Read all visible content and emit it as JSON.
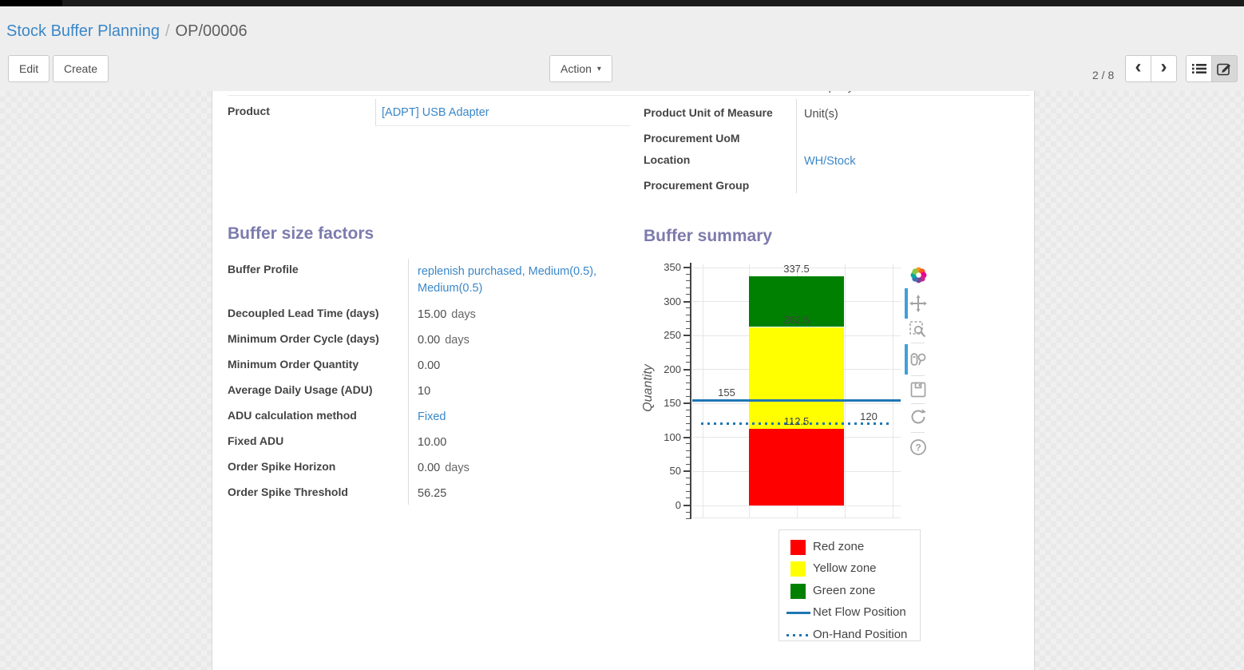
{
  "colors": {
    "heading": "#7c7bad",
    "link": "#3a87c8",
    "red_zone": "#ff0000",
    "yellow_zone": "#ffff00",
    "green_zone": "#008000",
    "line_blue": "#1f77b4",
    "modebar_active": "#3ea0dc"
  },
  "breadcrumb": {
    "parent": "Stock Buffer Planning",
    "separator": "/",
    "current": "OP/00006"
  },
  "toolbar": {
    "edit_label": "Edit",
    "create_label": "Create",
    "action_label": "Action",
    "pager": "2 / 8",
    "prev_icon": "chevron-left",
    "next_icon": "chevron-right",
    "view_icons": [
      "list-view-icon",
      "form-view-icon"
    ]
  },
  "form": {
    "clipped_top_value": "Company",
    "product": {
      "label": "Product",
      "value": "[ADPT] USB Adapter"
    },
    "right_fields": [
      {
        "label": "Product Unit of Measure",
        "value": "Unit(s)"
      },
      {
        "label": "Procurement UoM",
        "value": ""
      },
      {
        "label": "Location",
        "value": "WH/Stock"
      },
      {
        "label": "Procurement Group",
        "value": ""
      }
    ],
    "sections": {
      "factors_title": "Buffer size factors",
      "summary_title": "Buffer summary"
    },
    "factor_fields": [
      {
        "label": "Buffer Profile",
        "value": "replenish purchased, Medium(0.5), Medium(0.5)",
        "suffix": "",
        "link": true
      },
      {
        "label": "Decoupled Lead Time (days)",
        "value": "15.00",
        "suffix": "days",
        "link": false
      },
      {
        "label": "Minimum Order Cycle (days)",
        "value": "0.00",
        "suffix": "days",
        "link": false
      },
      {
        "label": "Minimum Order Quantity",
        "value": "0.00",
        "suffix": "",
        "link": false
      },
      {
        "label": "Average Daily Usage (ADU)",
        "value": "10",
        "suffix": "",
        "link": false
      },
      {
        "label": "ADU calculation method",
        "value": "Fixed",
        "suffix": "",
        "link": true
      },
      {
        "label": "Fixed ADU",
        "value": "10.00",
        "suffix": "",
        "link": false
      },
      {
        "label": "Order Spike Horizon",
        "value": "0.00",
        "suffix": "days",
        "link": false
      },
      {
        "label": "Order Spike Threshold",
        "value": "56.25",
        "suffix": "",
        "link": false
      }
    ]
  },
  "chart_data": {
    "type": "bar",
    "title": "Buffer summary",
    "xlabel": "",
    "ylabel": "Quantity",
    "ylim": [
      0,
      350
    ],
    "yticks": [
      0,
      50,
      100,
      150,
      200,
      250,
      300,
      350
    ],
    "ytick_minor_step": 10,
    "ymin_render": -20,
    "grid": true,
    "legend_position": "below-right",
    "zones": [
      {
        "name": "Red zone",
        "from": 0,
        "to": 112.5,
        "color": "#ff0000"
      },
      {
        "name": "Yellow zone",
        "from": 112.5,
        "to": 262.5,
        "color": "#ffff00"
      },
      {
        "name": "Green zone",
        "from": 262.5,
        "to": 337.5,
        "color": "#008000"
      }
    ],
    "lines": [
      {
        "name": "Net Flow Position",
        "value": 155,
        "style": "solid",
        "color": "#1f77b4"
      },
      {
        "name": "On-Hand Position",
        "value": 120,
        "style": "dotted",
        "color": "#1f77b4"
      }
    ],
    "value_labels": [
      {
        "text": "337.5",
        "y": 337.5,
        "pos": "bar"
      },
      {
        "text": "262.5",
        "y": 262.5,
        "pos": "bar"
      },
      {
        "text": "112.5",
        "y": 112.5,
        "pos": "bar"
      },
      {
        "text": "155",
        "y": 155,
        "pos": "left"
      },
      {
        "text": "120",
        "y": 120,
        "pos": "right"
      }
    ],
    "legend_items": [
      {
        "label": "Red zone",
        "swatch": "square",
        "color": "#ff0000"
      },
      {
        "label": "Yellow zone",
        "swatch": "square",
        "color": "#ffff00"
      },
      {
        "label": "Green zone",
        "swatch": "square",
        "color": "#008000"
      },
      {
        "label": "Net Flow Position",
        "swatch": "line",
        "color": "#1f77b4"
      },
      {
        "label": "On-Hand Position",
        "swatch": "dotted-line",
        "color": "#1f77b4"
      }
    ]
  },
  "modebar_icons": [
    "plotly-logo",
    "pan",
    "box-zoom",
    "compare-hover",
    "save",
    "reset-axes",
    "help"
  ]
}
